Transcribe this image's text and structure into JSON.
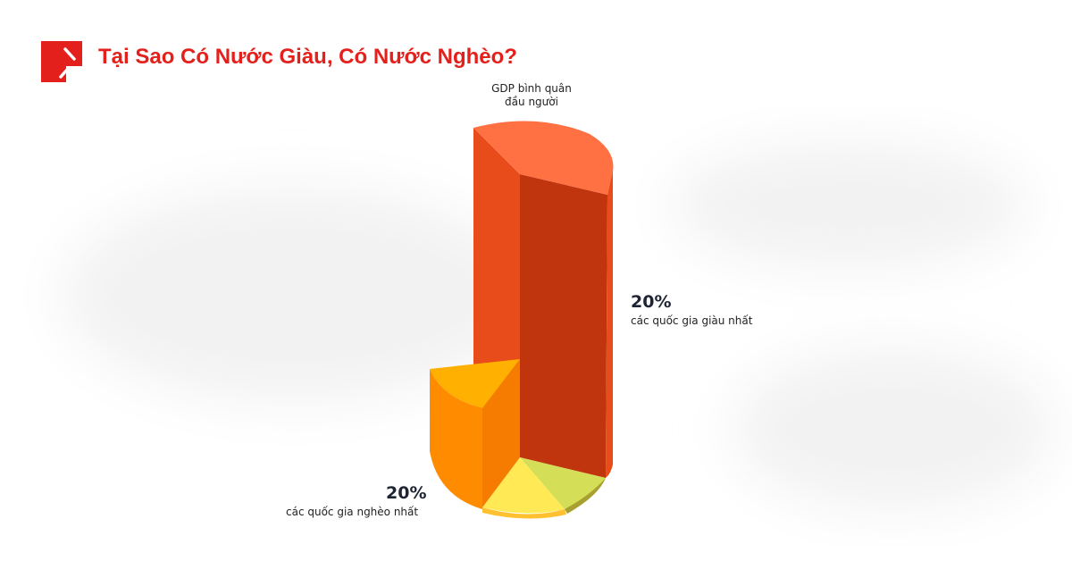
{
  "header": {
    "title": "Tại Sao Có Nước Giàu, Có Nước Nghèo?",
    "logo_icon": "brand-logo-icon"
  },
  "diagram": {
    "top_label_line1": "GDP bình quân",
    "top_label_line2": "đầu người",
    "rich": {
      "percent": "20%",
      "label": "các quốc gia giàu nhất"
    },
    "poor": {
      "percent": "20%",
      "label": "các quốc gia nghèo nhất"
    },
    "colors": {
      "brand": "#E3201B",
      "rich_top": "#FF7043",
      "rich_front": "#C0350D",
      "rich_side": "#E84C1A",
      "poor_top": "#FFB000",
      "poor_side": "#FF8C00",
      "yellow": "#FFE955",
      "green": "#D4DE56"
    }
  }
}
